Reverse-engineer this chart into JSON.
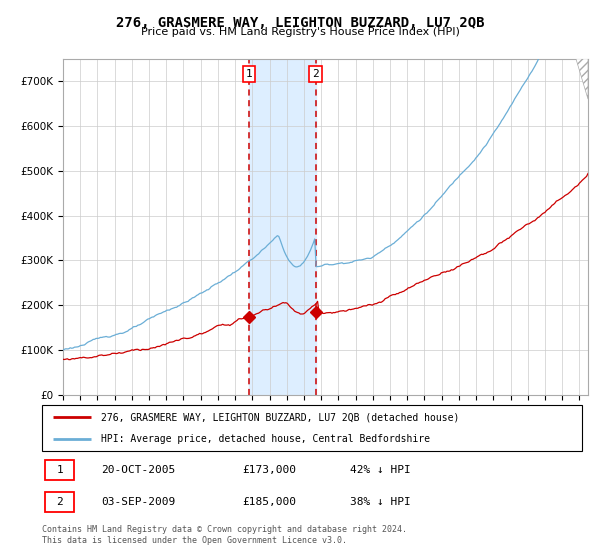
{
  "title": "276, GRASMERE WAY, LEIGHTON BUZZARD, LU7 2QB",
  "subtitle": "Price paid vs. HM Land Registry's House Price Index (HPI)",
  "ylabel_ticks": [
    "£0",
    "£100K",
    "£200K",
    "£300K",
    "£400K",
    "£500K",
    "£600K",
    "£700K"
  ],
  "ylim": [
    0,
    750000
  ],
  "xlim_start": 1995.0,
  "xlim_end": 2025.5,
  "sale1_date": 2005.8,
  "sale1_price": 173000,
  "sale1_label": "1",
  "sale2_date": 2009.67,
  "sale2_price": 185000,
  "sale2_label": "2",
  "hpi_color": "#6baed6",
  "price_color": "#cc0000",
  "shade_color": "#ddeeff",
  "dashed_color": "#cc0000",
  "legend1": "276, GRASMERE WAY, LEIGHTON BUZZARD, LU7 2QB (detached house)",
  "legend2": "HPI: Average price, detached house, Central Bedfordshire",
  "table_row1": [
    "1",
    "20-OCT-2005",
    "£173,000",
    "42% ↓ HPI"
  ],
  "table_row2": [
    "2",
    "03-SEP-2009",
    "£185,000",
    "38% ↓ HPI"
  ],
  "footnote": "Contains HM Land Registry data © Crown copyright and database right 2024.\nThis data is licensed under the Open Government Licence v3.0.",
  "background_color": "#ffffff",
  "grid_color": "#cccccc"
}
